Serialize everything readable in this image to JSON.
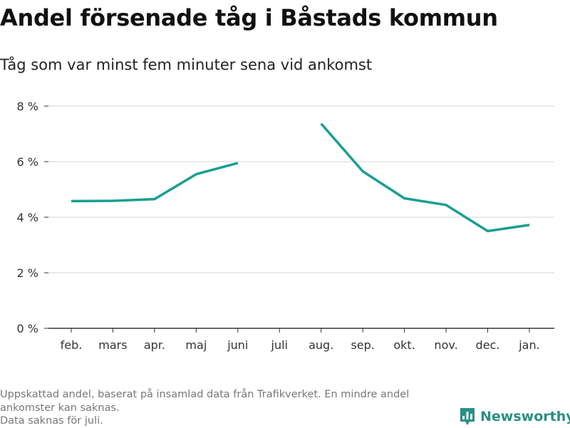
{
  "title": "Andel försenade tåg i Båstads kommun",
  "subtitle": "Tåg som var minst fem minuter sena vid ankomst",
  "footnote": {
    "line1": "Uppskattad andel, baserat på insamlad data från Trafikverket. En mindre andel ankomster kan saknas.",
    "line2": "Data saknas för juli."
  },
  "brand": {
    "name": "Newsworthy",
    "icon": "bar-chart-logo-icon",
    "color": "#2b8f84"
  },
  "colors": {
    "line": "#1a9e92",
    "grid": "#dddddd",
    "axis": "#333333"
  },
  "chart_data": {
    "type": "line",
    "categories": [
      "feb.",
      "mars",
      "apr.",
      "maj",
      "juni",
      "juli",
      "aug.",
      "sep.",
      "okt.",
      "nov.",
      "dec.",
      "jan."
    ],
    "series": [
      {
        "values": [
          4.58,
          4.59,
          4.65,
          5.55,
          5.95,
          null,
          7.37,
          5.65,
          4.68,
          4.44,
          3.5,
          3.72
        ]
      }
    ],
    "ylim": [
      0,
      8
    ],
    "yticks": [
      0,
      2,
      4,
      6,
      8
    ],
    "ytick_labels": [
      "0 %",
      "2 %",
      "4 %",
      "6 %",
      "8 %"
    ],
    "grid": true,
    "legend": "none"
  }
}
